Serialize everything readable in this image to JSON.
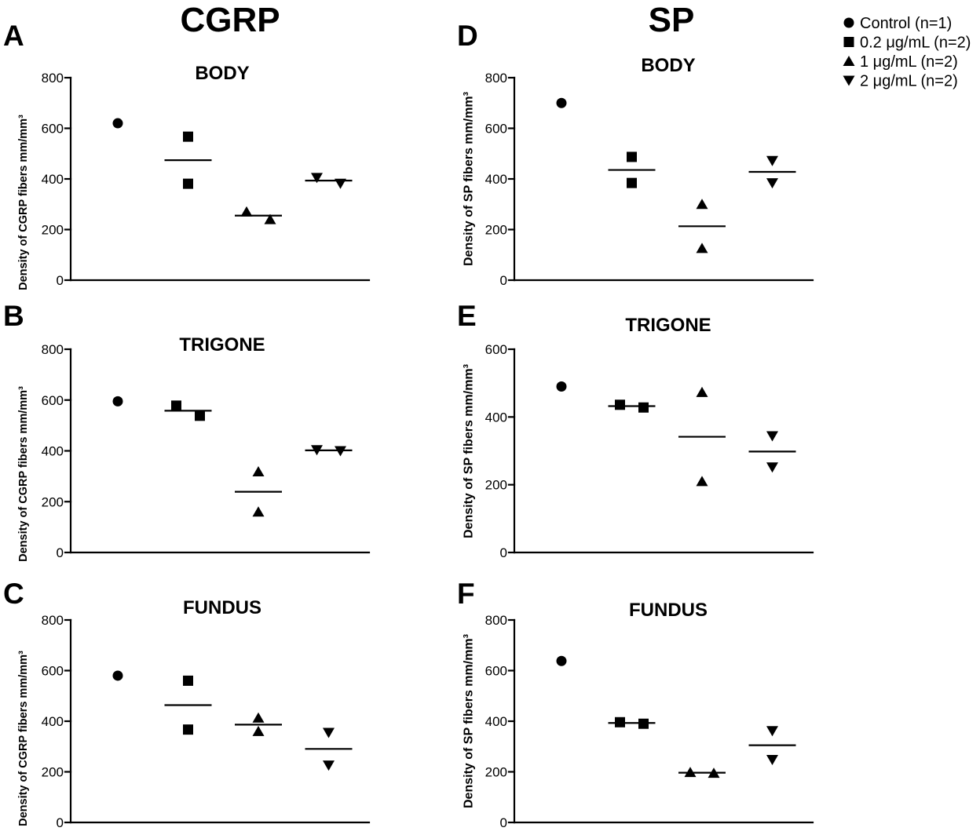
{
  "figure": {
    "column_titles": {
      "cgrp": "CGRP",
      "sp": "SP"
    }
  },
  "legend": {
    "items": [
      {
        "label": "Control (n=1)",
        "marker": "circle"
      },
      {
        "label": "0.2 μg/mL (n=2)",
        "marker": "square"
      },
      {
        "label": "1 μg/mL (n=2)",
        "marker": "triangle-up"
      },
      {
        "label": "2 μg/mL (n=2)",
        "marker": "triangle-down"
      }
    ]
  },
  "colors": {
    "ink": "#000000",
    "background": "#ffffff"
  },
  "chart_data": [
    {
      "panel": "A",
      "type": "scatter",
      "title": "BODY",
      "xlabel": "",
      "ylabel": "Density of CGRP fibers mm/mm³",
      "ylim": [
        0,
        800
      ],
      "yticks": [
        0,
        200,
        400,
        600,
        800
      ],
      "series": [
        {
          "group": 0,
          "marker": "circle",
          "values": [
            620
          ],
          "mean_line": false
        },
        {
          "group": 1,
          "marker": "square",
          "values": [
            567,
            381
          ],
          "mean_line": true
        },
        {
          "group": 2,
          "marker": "triangle-up",
          "values": [
            270,
            240
          ],
          "mean_line": true
        },
        {
          "group": 3,
          "marker": "triangle-down",
          "values": [
            405,
            382
          ],
          "mean_line": true
        }
      ]
    },
    {
      "panel": "B",
      "type": "scatter",
      "title": "TRIGONE",
      "xlabel": "",
      "ylabel": "Density of CGRP fibers mm/mm³",
      "ylim": [
        0,
        800
      ],
      "yticks": [
        0,
        200,
        400,
        600,
        800
      ],
      "series": [
        {
          "group": 0,
          "marker": "circle",
          "values": [
            595
          ],
          "mean_line": false
        },
        {
          "group": 1,
          "marker": "square",
          "values": [
            578,
            538
          ],
          "mean_line": true
        },
        {
          "group": 2,
          "marker": "triangle-up",
          "values": [
            318,
            160
          ],
          "mean_line": true
        },
        {
          "group": 3,
          "marker": "triangle-down",
          "values": [
            404,
            400
          ],
          "mean_line": true
        }
      ]
    },
    {
      "panel": "C",
      "type": "scatter",
      "title": "FUNDUS",
      "xlabel": "",
      "ylabel": "Density of CGRP fibers mm/mm³",
      "ylim": [
        0,
        800
      ],
      "yticks": [
        0,
        200,
        400,
        600,
        800
      ],
      "series": [
        {
          "group": 0,
          "marker": "circle",
          "values": [
            580
          ],
          "mean_line": false
        },
        {
          "group": 1,
          "marker": "square",
          "values": [
            560,
            367
          ],
          "mean_line": true
        },
        {
          "group": 2,
          "marker": "triangle-up",
          "values": [
            413,
            360
          ],
          "mean_line": true
        },
        {
          "group": 3,
          "marker": "triangle-down",
          "values": [
            355,
            226
          ],
          "mean_line": true
        }
      ]
    },
    {
      "panel": "D",
      "type": "scatter",
      "title": "BODY",
      "xlabel": "",
      "ylabel": "Density of SP fibers mm/mm³",
      "ylim": [
        0,
        800
      ],
      "yticks": [
        0,
        200,
        400,
        600,
        800
      ],
      "series": [
        {
          "group": 0,
          "marker": "circle",
          "values": [
            700
          ],
          "mean_line": false
        },
        {
          "group": 1,
          "marker": "square",
          "values": [
            487,
            384
          ],
          "mean_line": true
        },
        {
          "group": 2,
          "marker": "triangle-up",
          "values": [
            300,
            126
          ],
          "mean_line": true
        },
        {
          "group": 3,
          "marker": "triangle-down",
          "values": [
            472,
            384
          ],
          "mean_line": true
        }
      ]
    },
    {
      "panel": "E",
      "type": "scatter",
      "title": "TRIGONE",
      "xlabel": "",
      "ylabel": "Density of SP fibers mm/mm³",
      "ylim": [
        0,
        600
      ],
      "yticks": [
        0,
        200,
        400,
        600
      ],
      "series": [
        {
          "group": 0,
          "marker": "circle",
          "values": [
            490
          ],
          "mean_line": false
        },
        {
          "group": 1,
          "marker": "square",
          "values": [
            436,
            428
          ],
          "mean_line": true
        },
        {
          "group": 2,
          "marker": "triangle-up",
          "values": [
            473,
            210
          ],
          "mean_line": true
        },
        {
          "group": 3,
          "marker": "triangle-down",
          "values": [
            344,
            252
          ],
          "mean_line": true
        }
      ]
    },
    {
      "panel": "F",
      "type": "scatter",
      "title": "FUNDUS",
      "xlabel": "",
      "ylabel": "Density of SP fibers mm/mm³",
      "ylim": [
        0,
        800
      ],
      "yticks": [
        0,
        200,
        400,
        600,
        800
      ],
      "series": [
        {
          "group": 0,
          "marker": "circle",
          "values": [
            638
          ],
          "mean_line": false
        },
        {
          "group": 1,
          "marker": "square",
          "values": [
            396,
            390
          ],
          "mean_line": true
        },
        {
          "group": 2,
          "marker": "triangle-up",
          "values": [
            198,
            195
          ],
          "mean_line": true
        },
        {
          "group": 3,
          "marker": "triangle-down",
          "values": [
            362,
            248
          ],
          "mean_line": true
        }
      ]
    }
  ]
}
